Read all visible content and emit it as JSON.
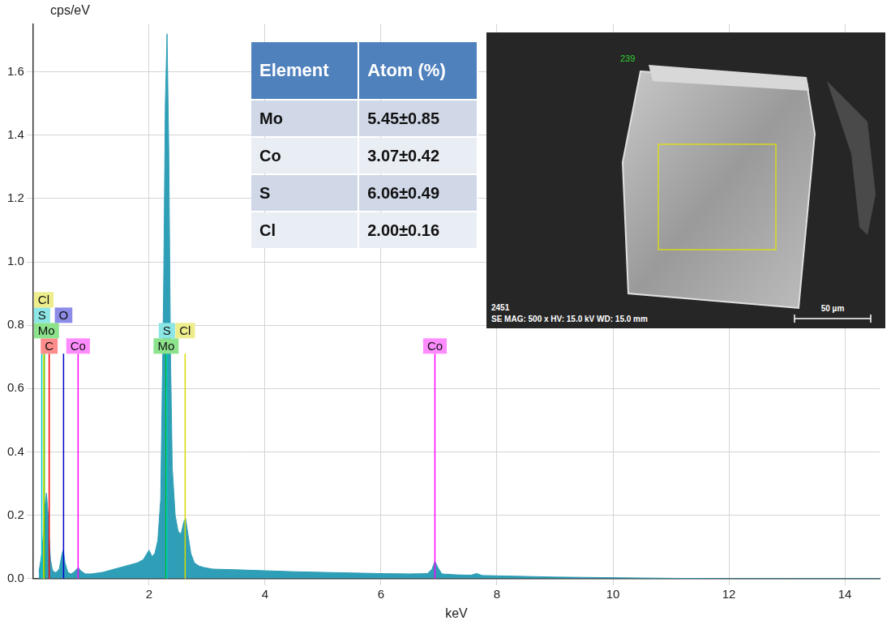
{
  "chart_data": {
    "type": "line",
    "x_label": "keV",
    "y_label": "cps/eV",
    "color": "#2f9fb7",
    "grid": true,
    "xlim": [
      0,
      14.6
    ],
    "xticks": [
      2,
      4,
      6,
      8,
      10,
      12,
      14
    ],
    "ylim": [
      0,
      1.75
    ],
    "yticks": [
      {
        "value": 0,
        "label": "0.0"
      },
      0.2,
      0.4,
      0.6,
      0.8,
      {
        "value": 1,
        "label": "1.0"
      },
      1.2,
      1.4,
      1.6
    ],
    "x": [
      0.1,
      0.15,
      0.18,
      0.2,
      0.23,
      0.26,
      0.28,
      0.3,
      0.33,
      0.36,
      0.4,
      0.45,
      0.5,
      0.52,
      0.55,
      0.6,
      0.65,
      0.7,
      0.75,
      0.78,
      0.82,
      0.9,
      1.0,
      1.2,
      1.4,
      1.6,
      1.8,
      1.9,
      2.0,
      2.05,
      2.1,
      2.15,
      2.2,
      2.25,
      2.28,
      2.31,
      2.34,
      2.37,
      2.4,
      2.45,
      2.5,
      2.55,
      2.6,
      2.63,
      2.67,
      2.72,
      2.78,
      2.82,
      2.86,
      2.95,
      3.1,
      3.5,
      4.0,
      4.5,
      5.0,
      5.5,
      6.0,
      6.5,
      6.8,
      6.88,
      6.93,
      6.98,
      7.05,
      7.3,
      7.55,
      7.65,
      7.75,
      8.0,
      8.5,
      9.0,
      9.5,
      10.0,
      10.5,
      11.0,
      12.0,
      13.0,
      14.0,
      14.6
    ],
    "values": [
      0.02,
      0.08,
      0.15,
      0.22,
      0.27,
      0.2,
      0.12,
      0.06,
      0.03,
      0.02,
      0.02,
      0.03,
      0.08,
      0.09,
      0.05,
      0.02,
      0.015,
      0.02,
      0.03,
      0.035,
      0.025,
      0.015,
      0.015,
      0.02,
      0.03,
      0.04,
      0.05,
      0.06,
      0.09,
      0.07,
      0.08,
      0.12,
      0.25,
      0.9,
      1.5,
      1.72,
      1.35,
      0.7,
      0.35,
      0.2,
      0.15,
      0.14,
      0.18,
      0.19,
      0.14,
      0.08,
      0.05,
      0.045,
      0.04,
      0.035,
      0.03,
      0.028,
      0.025,
      0.022,
      0.02,
      0.018,
      0.016,
      0.015,
      0.016,
      0.03,
      0.055,
      0.035,
      0.015,
      0.012,
      0.011,
      0.016,
      0.01,
      0.009,
      0.007,
      0.005,
      0.004,
      0.003,
      0.002,
      0.001,
      0,
      0,
      0,
      0
    ],
    "annotations": [
      {
        "label": "C",
        "energy": 0.277,
        "height": 0.71,
        "color": "#ff0000"
      },
      {
        "label": "Co",
        "energy": 0.776,
        "height": 0.71,
        "color": "#ff00ff"
      },
      {
        "label": "Mo",
        "energy": 0.193,
        "height": 0.71,
        "color": "#00c000"
      },
      {
        "label": "S",
        "energy": 0.149,
        "height": 0.71,
        "color": "#00c8c8"
      },
      {
        "label": "O",
        "energy": 0.525,
        "height": 0.71,
        "color": "#0000cc"
      },
      {
        "label": "Cl",
        "energy": 0.183,
        "height": 0.71,
        "color": "#d8d800"
      },
      {
        "label": "Mo",
        "energy": 2.293,
        "height": 0.71,
        "color": "#00c000"
      },
      {
        "label": "S",
        "energy": 2.307,
        "height": 0.71,
        "color": "#00c8c8"
      },
      {
        "label": "Cl",
        "energy": 2.622,
        "height": 0.71,
        "color": "#d8d800"
      },
      {
        "label": "Co",
        "energy": 6.93,
        "height": 0.71,
        "color": "#ff00ff"
      }
    ]
  },
  "table": {
    "header": [
      "Element",
      "Atom (%)"
    ],
    "rows": [
      [
        "Mo",
        "5.45±0.85"
      ],
      [
        "Co",
        "3.07±0.42"
      ],
      [
        "S",
        "6.06±0.49"
      ],
      [
        "Cl",
        "2.00±0.16"
      ]
    ]
  },
  "image": {
    "frame_label": "239",
    "id": "2451",
    "info": "SE  MAG: 500 x  HV: 15.0 kV  WD: 15.0 mm",
    "scale_bar": "50 µm"
  }
}
